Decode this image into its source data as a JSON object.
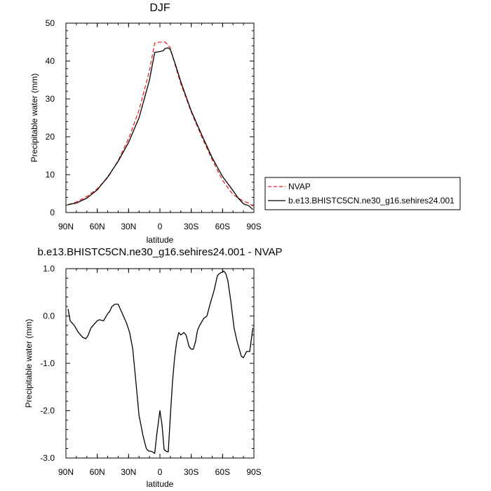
{
  "chart_data": [
    {
      "type": "line",
      "title": "DJF",
      "xlabel": "latitude",
      "ylabel": "Precipitable water (mm)",
      "xlim": [
        90,
        -90
      ],
      "ylim": [
        0,
        50
      ],
      "grid": false,
      "legend_position": "right",
      "x_ticks": [
        {
          "v": 90,
          "label": "90N"
        },
        {
          "v": 60,
          "label": "60N"
        },
        {
          "v": 30,
          "label": "30N"
        },
        {
          "v": 0,
          "label": "0"
        },
        {
          "v": -30,
          "label": "30S"
        },
        {
          "v": -60,
          "label": "60S"
        },
        {
          "v": -90,
          "label": "90S"
        }
      ],
      "y_ticks": [
        {
          "v": 0,
          "label": "0"
        },
        {
          "v": 10,
          "label": "10"
        },
        {
          "v": 20,
          "label": "20"
        },
        {
          "v": 30,
          "label": "30"
        },
        {
          "v": 40,
          "label": "40"
        },
        {
          "v": 50,
          "label": "50"
        }
      ],
      "series": [
        {
          "name": "NVAP",
          "color": "#e8262a",
          "dash": "dashed",
          "x": [
            88,
            80,
            70,
            60,
            50,
            40,
            30,
            20,
            10,
            5,
            0,
            -5,
            -10,
            -15,
            -20,
            -30,
            -40,
            -50,
            -60,
            -70,
            -80,
            -85,
            -89
          ],
          "y": [
            2.0,
            2.8,
            4.2,
            6.3,
            9.2,
            13.7,
            19.5,
            27.0,
            37.5,
            44.8,
            45.0,
            45.0,
            43.5,
            38.5,
            34.0,
            26.5,
            20.0,
            14.0,
            8.5,
            4.7,
            3.0,
            2.5,
            1.7
          ]
        },
        {
          "name": "b.e13.BHISTC5CN.ne30_g16.sehires24.001",
          "color": "#000000",
          "dash": "solid",
          "x": [
            88,
            80,
            70,
            60,
            50,
            40,
            30,
            20,
            15,
            10,
            5,
            0,
            -3,
            -5,
            -8,
            -10,
            -15,
            -20,
            -30,
            -40,
            -50,
            -60,
            -70,
            -75,
            -80,
            -85,
            -89
          ],
          "y": [
            2.1,
            2.5,
            3.8,
            6.0,
            9.4,
            13.5,
            18.5,
            25.0,
            30.0,
            35.0,
            42.3,
            42.5,
            42.7,
            43.3,
            43.5,
            43.0,
            39.0,
            34.5,
            26.8,
            20.5,
            14.5,
            9.5,
            5.8,
            3.8,
            2.3,
            1.8,
            0.8
          ]
        }
      ]
    },
    {
      "type": "line",
      "title": "b.e13.BHISTC5CN.ne30_g16.sehires24.001 - NVAP",
      "xlabel": "latitude",
      "ylabel": "Precipitable water (mm)",
      "xlim": [
        90,
        -90
      ],
      "ylim": [
        -3.0,
        1.0
      ],
      "grid": false,
      "x_ticks": [
        {
          "v": 90,
          "label": "90N"
        },
        {
          "v": 60,
          "label": "60N"
        },
        {
          "v": 30,
          "label": "30N"
        },
        {
          "v": 0,
          "label": "0"
        },
        {
          "v": -30,
          "label": "30S"
        },
        {
          "v": -60,
          "label": "60S"
        },
        {
          "v": -90,
          "label": "90S"
        }
      ],
      "y_ticks": [
        {
          "v": -3.0,
          "label": "-3.0"
        },
        {
          "v": -2.0,
          "label": "-2.0"
        },
        {
          "v": -1.0,
          "label": "-1.0"
        },
        {
          "v": 0.0,
          "label": "0.0"
        },
        {
          "v": 1.0,
          "label": "1.0"
        }
      ],
      "series": [
        {
          "name": "",
          "color": "#000000",
          "dash": "solid",
          "x": [
            88,
            86,
            82,
            78,
            74,
            71,
            69,
            66,
            62,
            60,
            58,
            54,
            50,
            48,
            46,
            43,
            40,
            37,
            34,
            32,
            29,
            26,
            23,
            20,
            16,
            13,
            11,
            8,
            5,
            3,
            0,
            -2,
            -4,
            -6,
            -8,
            -10,
            -12,
            -14,
            -16,
            -18,
            -20,
            -23,
            -25,
            -28,
            -30,
            -32,
            -34,
            -36,
            -38,
            -42,
            -45,
            -48,
            -52,
            -55,
            -57,
            -59,
            -61,
            -63,
            -65,
            -68,
            -71,
            -74,
            -78,
            -80,
            -83,
            -86,
            -89
          ],
          "y": [
            0.15,
            -0.1,
            -0.2,
            -0.35,
            -0.45,
            -0.48,
            -0.42,
            -0.25,
            -0.15,
            -0.1,
            -0.08,
            -0.1,
            0.05,
            0.1,
            0.2,
            0.25,
            0.25,
            0.1,
            -0.05,
            -0.15,
            -0.35,
            -0.7,
            -1.4,
            -2.1,
            -2.55,
            -2.8,
            -2.85,
            -2.86,
            -2.9,
            -2.5,
            -2.0,
            -2.3,
            -2.82,
            -2.86,
            -2.87,
            -2.1,
            -1.4,
            -0.9,
            -0.55,
            -0.35,
            -0.4,
            -0.35,
            -0.4,
            -0.65,
            -0.7,
            -0.7,
            -0.55,
            -0.3,
            -0.2,
            -0.05,
            0.0,
            0.25,
            0.55,
            0.85,
            0.9,
            0.92,
            0.95,
            0.9,
            0.75,
            0.3,
            -0.25,
            -0.55,
            -0.85,
            -0.88,
            -0.75,
            -0.75,
            -0.25
          ]
        }
      ]
    }
  ]
}
